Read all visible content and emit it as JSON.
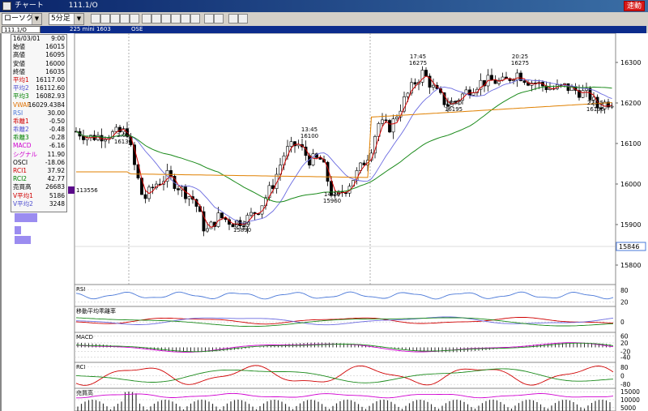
{
  "window": {
    "title": "チャート",
    "code": "111.1/O",
    "badge": "速動"
  },
  "toolbar": {
    "chart_type": "ローソク",
    "interval": "5分足"
  },
  "symbol": {
    "code": "111.1/O",
    "name": "225 mini 1603",
    "exchange": "OSE"
  },
  "info_panel": {
    "date": "16/03/01",
    "time": "9:00",
    "rows": [
      {
        "label": "始値",
        "value": "16015",
        "color": "#000000"
      },
      {
        "label": "高値",
        "value": "16095",
        "color": "#000000"
      },
      {
        "label": "安値",
        "value": "16000",
        "color": "#000000"
      },
      {
        "label": "終値",
        "value": "16035",
        "color": "#000000"
      },
      {
        "label": "平均1",
        "value": "16117.00",
        "color": "#d00000"
      },
      {
        "label": "平均2",
        "value": "16112.60",
        "color": "#5050d0"
      },
      {
        "label": "平均3",
        "value": "16082.93",
        "color": "#008000"
      },
      {
        "label": "VWAP",
        "value": "16029.4384",
        "color": "#e07000"
      },
      {
        "label": "RSI",
        "value": "30.00",
        "color": "#4a78d8"
      },
      {
        "label": "乖離1",
        "value": "-0.50",
        "color": "#d00000"
      },
      {
        "label": "乖離2",
        "value": "-0.48",
        "color": "#5050d0"
      },
      {
        "label": "乖離3",
        "value": "-0.28",
        "color": "#008000"
      },
      {
        "label": "MACD",
        "value": "-6.16",
        "color": "#d000d0"
      },
      {
        "label": "シグナル",
        "value": "11.90",
        "color": "#d000d0"
      },
      {
        "label": "OSCI",
        "value": "-18.06",
        "color": "#000000"
      },
      {
        "label": "RCI1",
        "value": "37.92",
        "color": "#d00000"
      },
      {
        "label": "RCI2",
        "value": "42.77",
        "color": "#008000"
      },
      {
        "label": "売買高",
        "value": "26683",
        "color": "#000000"
      },
      {
        "label": "V平均1",
        "value": "5186",
        "color": "#d00000"
      },
      {
        "label": "V平均2",
        "value": "3248",
        "color": "#5050d0"
      }
    ]
  },
  "main_chart": {
    "yticks": [
      "16300",
      "16200",
      "16100",
      "16000",
      "15900",
      "15800"
    ],
    "current_price": "15846",
    "left_marker": "113556",
    "annotations": [
      {
        "time": "3:00",
        "price": "16130"
      },
      {
        "time": "12:00",
        "price": "15890"
      },
      {
        "time": "13:45",
        "price": "16100"
      },
      {
        "time": "14:20",
        "price": "15960"
      },
      {
        "time": "17:45",
        "price": "16275"
      },
      {
        "time": "18:40",
        "price": "16195"
      },
      {
        "time": "20:25",
        "price": "16275"
      },
      {
        "time": "22:25",
        "price": "16190"
      }
    ]
  },
  "panels": {
    "rsi": {
      "label": "RSI",
      "ticks": [
        "80",
        "20"
      ]
    },
    "kairi": {
      "label": "移動平均乖離率",
      "ticks": [
        "0"
      ]
    },
    "macd": {
      "label": "MACD",
      "ticks": [
        "60",
        "20",
        "-20",
        "-40"
      ]
    },
    "rci": {
      "label": "RCI",
      "ticks": [
        "80",
        "0",
        "-80"
      ]
    },
    "volume": {
      "label": "売買高",
      "ticks": [
        "15000",
        "10000",
        "5000"
      ]
    }
  },
  "colors": {
    "ma1": "#d00000",
    "ma2": "#6a6ae0",
    "ma3": "#1a8a1a",
    "vwap": "#e08000",
    "rsi": "#4a78d8",
    "macd": "#d000d0",
    "signal": "#1a8a1a",
    "volume_bar": "#9b8cf0"
  }
}
